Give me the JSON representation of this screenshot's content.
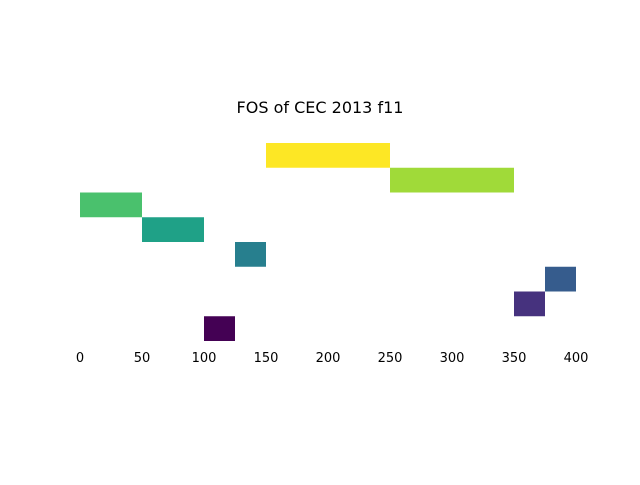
{
  "chart_data": {
    "type": "bar",
    "orientation": "horizontal-segments",
    "title": "FOS of CEC 2013 f11",
    "xlabel": "",
    "ylabel": "",
    "xlim": [
      0,
      400
    ],
    "x_ticks": [
      "0",
      "50",
      "100",
      "150",
      "200",
      "250",
      "300",
      "350",
      "400"
    ],
    "y_axis_visible": false,
    "grid": false,
    "legend": "none",
    "segments": [
      {
        "row": 8,
        "start": 150,
        "end": 250,
        "color": "#fde725"
      },
      {
        "row": 7,
        "start": 250,
        "end": 350,
        "color": "#a0da39"
      },
      {
        "row": 6,
        "start": 0,
        "end": 50,
        "color": "#4ac16d"
      },
      {
        "row": 5,
        "start": 50,
        "end": 100,
        "color": "#1fa187"
      },
      {
        "row": 4,
        "start": 125,
        "end": 150,
        "color": "#277f8e"
      },
      {
        "row": 3,
        "start": 375,
        "end": 400,
        "color": "#365c8d"
      },
      {
        "row": 2,
        "start": 350,
        "end": 375,
        "color": "#46327e"
      },
      {
        "row": 1,
        "start": 100,
        "end": 125,
        "color": "#440154"
      }
    ],
    "rows_range": [
      1,
      8
    ]
  }
}
